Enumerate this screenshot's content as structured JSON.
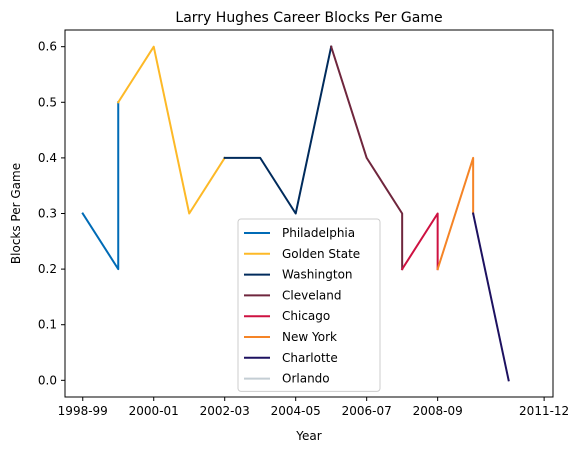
{
  "chart_data": {
    "type": "line",
    "title": "Larry Hughes Career Blocks Per Game",
    "xlabel": "Year",
    "ylabel": "Blocks Per Game",
    "xlim": [
      1998.0,
      2011.75
    ],
    "ylim": [
      -0.03,
      0.63
    ],
    "xticks": [
      {
        "value": 1998.5,
        "label": "1998-99"
      },
      {
        "value": 2000.5,
        "label": "2000-01"
      },
      {
        "value": 2002.5,
        "label": "2002-03"
      },
      {
        "value": 2004.5,
        "label": "2004-05"
      },
      {
        "value": 2006.5,
        "label": "2006-07"
      },
      {
        "value": 2008.5,
        "label": "2008-09"
      },
      {
        "value": 2011.5,
        "label": "2011-12"
      }
    ],
    "yticks": [
      0.0,
      0.1,
      0.2,
      0.3,
      0.4,
      0.5,
      0.6
    ],
    "grid": false,
    "legend_position": "bottom-center",
    "series": [
      {
        "name": "Philadelphia",
        "color": "#006BB6",
        "points": [
          [
            1998.5,
            0.3
          ],
          [
            1999.5,
            0.2
          ],
          [
            1999.5,
            0.5
          ]
        ]
      },
      {
        "name": "Golden State",
        "color": "#FDB927",
        "points": [
          [
            1999.5,
            0.5
          ],
          [
            2000.5,
            0.6
          ],
          [
            2001.5,
            0.3
          ],
          [
            2002.5,
            0.4
          ]
        ]
      },
      {
        "name": "Washington",
        "color": "#002B5C",
        "points": [
          [
            2002.5,
            0.4
          ],
          [
            2003.5,
            0.4
          ],
          [
            2004.5,
            0.3
          ],
          [
            2005.5,
            0.6
          ]
        ]
      },
      {
        "name": "Cleveland",
        "color": "#6F263D",
        "points": [
          [
            2005.5,
            0.6
          ],
          [
            2006.5,
            0.4
          ],
          [
            2007.5,
            0.3
          ],
          [
            2007.5,
            0.2
          ]
        ]
      },
      {
        "name": "Chicago",
        "color": "#CE1141",
        "points": [
          [
            2007.5,
            0.2
          ],
          [
            2008.5,
            0.3
          ],
          [
            2008.5,
            0.2
          ]
        ]
      },
      {
        "name": "New York",
        "color": "#F58426",
        "points": [
          [
            2008.5,
            0.2
          ],
          [
            2009.5,
            0.4
          ],
          [
            2009.5,
            0.3
          ]
        ]
      },
      {
        "name": "Charlotte",
        "color": "#1D1160",
        "points": [
          [
            2009.5,
            0.3
          ],
          [
            2010.5,
            0.0
          ]
        ]
      },
      {
        "name": "Orlando",
        "color": "#C4CED4",
        "points": []
      }
    ]
  }
}
